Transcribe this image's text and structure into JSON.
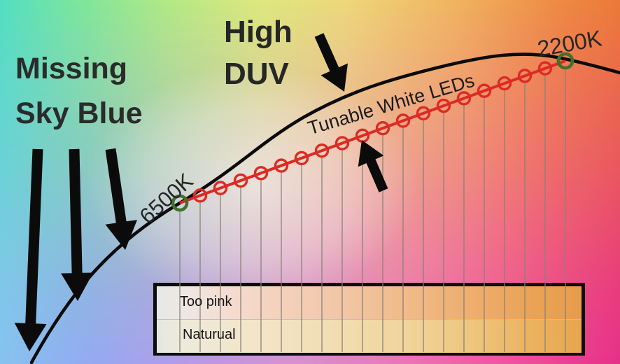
{
  "labels": {
    "missing_sky_blue_line1": "Missing",
    "missing_sky_blue_line2": "Sky Blue",
    "high_duv_line1": "High",
    "high_duv_line2": "DUV",
    "locus_start": "6500K",
    "locus_end": "2200K",
    "led_series": "Tunable White LEDs"
  },
  "table": {
    "rows": [
      {
        "label": "Too pink"
      },
      {
        "label": "Naturual"
      }
    ]
  },
  "series": {
    "name": "Tunable White LEDs",
    "start_cct": "6500K",
    "end_cct": "2200K",
    "num_points": 20,
    "num_led_markers": 18
  },
  "colors": {
    "curve_black": "#0b0b0b",
    "led_line_red": "#dd2a24",
    "endpoint_green": "#41702e",
    "arrow_black": "#0b0b0b",
    "gridline_gray": "#8a8078",
    "table_border": "#0d0d0d",
    "row_separator": "#c6c0b6",
    "text_dark": "#262626",
    "row_too_pink_stops": [
      {
        "c": "#e5e9e7",
        "p": 0
      },
      {
        "c": "#efe7e3",
        "p": 7
      },
      {
        "c": "#f4ddd3",
        "p": 16
      },
      {
        "c": "#f4d2bd",
        "p": 28
      },
      {
        "c": "#f2c7a8",
        "p": 42
      },
      {
        "c": "#f0bb8b",
        "p": 58
      },
      {
        "c": "#eeae6d",
        "p": 74
      },
      {
        "c": "#eaa357",
        "p": 88
      },
      {
        "c": "#e79c4a",
        "p": 100
      }
    ],
    "row_natural_stops": [
      {
        "c": "#e5e8e1",
        "p": 0
      },
      {
        "c": "#eeead9",
        "p": 7
      },
      {
        "c": "#f1e7d0",
        "p": 16
      },
      {
        "c": "#f3e3c3",
        "p": 28
      },
      {
        "c": "#f2ddb2",
        "p": 42
      },
      {
        "c": "#f0d59c",
        "p": 58
      },
      {
        "c": "#eec67e",
        "p": 74
      },
      {
        "c": "#ebb260",
        "p": 88
      },
      {
        "c": "#e8a64e",
        "p": 100
      }
    ],
    "bg_top_stops": [
      {
        "c": "#52dfc1",
        "p": 0
      },
      {
        "c": "#7ee69c",
        "p": 13
      },
      {
        "c": "#b2e985",
        "p": 27
      },
      {
        "c": "#dde87e",
        "p": 42
      },
      {
        "c": "#eed77a",
        "p": 56
      },
      {
        "c": "#f0b35f",
        "p": 74
      },
      {
        "c": "#ee8b44",
        "p": 90
      },
      {
        "c": "#ec7a39",
        "p": 100
      }
    ],
    "bg_bottom_stops": [
      {
        "c": "#87c2f0",
        "p": 0
      },
      {
        "c": "#93aaf1",
        "p": 14
      },
      {
        "c": "#b39ae9",
        "p": 30
      },
      {
        "c": "#d98fd4",
        "p": 48
      },
      {
        "c": "#ec74b7",
        "p": 65
      },
      {
        "c": "#f0539c",
        "p": 82
      },
      {
        "c": "#e7308a",
        "p": 100
      }
    ]
  }
}
